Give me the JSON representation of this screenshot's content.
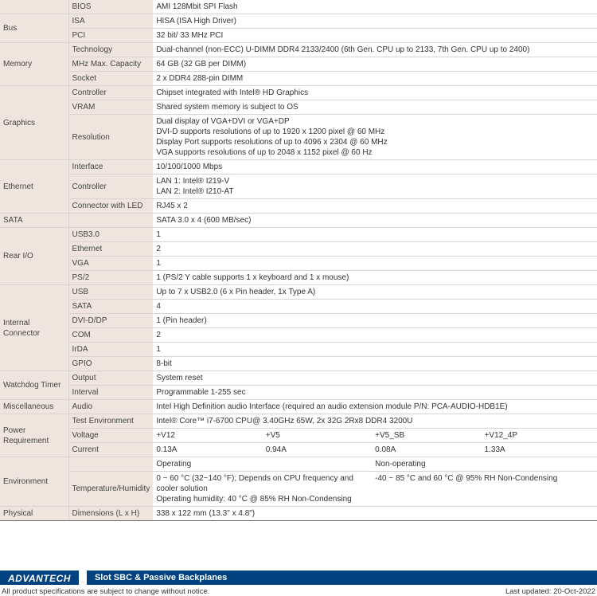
{
  "colors": {
    "category_bg": "#efe5de",
    "border": "#d8d4cf",
    "section_border": "#666666",
    "brand_bg": "#004280",
    "text": "#333333"
  },
  "rows": [
    {
      "cat": "",
      "sub": "BIOS",
      "val": "AMI 128Mbit SPI Flash",
      "catspan": 1
    },
    {
      "cat": "Bus",
      "sub": "ISA",
      "val": "HISA (ISA High Driver)",
      "catspan": 2,
      "sep": true
    },
    {
      "cat": "",
      "sub": "PCI",
      "val": "32 bit/ 33 MHz PCI",
      "catspan": 0
    },
    {
      "cat": "Memory",
      "sub": "Technology",
      "val": "Dual-channel (non-ECC) U-DIMM DDR4 2133/2400 (6th Gen. CPU up to 2133, 7th Gen. CPU up to 2400)",
      "catspan": 3,
      "sep": true
    },
    {
      "cat": "",
      "sub": "MHz Max. Capacity",
      "val": "64 GB (32 GB per DIMM)",
      "catspan": 0
    },
    {
      "cat": "",
      "sub": "Socket",
      "val": "2 x DDR4 288-pin DIMM",
      "catspan": 0
    },
    {
      "cat": "Graphics",
      "sub": "Controller",
      "val": "Chipset integrated with Intel® HD Graphics",
      "catspan": 3,
      "sep": true
    },
    {
      "cat": "",
      "sub": "VRAM",
      "val": "Shared system memory is subject to OS",
      "catspan": 0
    },
    {
      "cat": "",
      "sub": "Resolution",
      "val": "Dual display of VGA+DVI or VGA+DP\nDVI-D supports resolutions of up to 1920 x 1200 pixel @ 60 MHz\nDisplay Port supports resolutions of up to 4096 x 2304 @ 60 MHz\nVGA supports resolutions of up to 2048 x 1152 pixel @ 60 Hz",
      "catspan": 0
    },
    {
      "cat": "Ethernet",
      "sub": "Interface",
      "val": "10/100/1000 Mbps",
      "catspan": 3,
      "sep": true
    },
    {
      "cat": "",
      "sub": "Controller",
      "val": "LAN 1: Intel® I219-V\nLAN 2: Intel® I210-AT",
      "catspan": 0
    },
    {
      "cat": "",
      "sub": "Connector with LED",
      "val": "RJ45 x 2",
      "catspan": 0
    },
    {
      "cat": "SATA",
      "sub": "",
      "val": "SATA 3.0 x 4 (600 MB/sec)",
      "catspan": 1,
      "sep": true,
      "full": true
    },
    {
      "cat": "Rear I/O",
      "sub": "USB3.0",
      "val": "1",
      "catspan": 4,
      "sep": true
    },
    {
      "cat": "",
      "sub": "Ethernet",
      "val": "2",
      "catspan": 0
    },
    {
      "cat": "",
      "sub": "VGA",
      "val": "1",
      "catspan": 0
    },
    {
      "cat": "",
      "sub": "PS/2",
      "val": "1 (PS/2 Y cable supports 1 x keyboard and 1 x mouse)",
      "catspan": 0
    },
    {
      "cat": "Internal Connector",
      "sub": "USB",
      "val": "Up to 7 x USB2.0 (6 x Pin header, 1x Type A)",
      "catspan": 6,
      "sep": true
    },
    {
      "cat": "",
      "sub": "SATA",
      "val": "4",
      "catspan": 0
    },
    {
      "cat": "",
      "sub": "DVI-D/DP",
      "val": "1 (Pin header)",
      "catspan": 0
    },
    {
      "cat": "",
      "sub": "COM",
      "val": "2",
      "catspan": 0
    },
    {
      "cat": "",
      "sub": "IrDA",
      "val": "1",
      "catspan": 0
    },
    {
      "cat": "",
      "sub": "GPIO",
      "val": "8-bit",
      "catspan": 0
    },
    {
      "cat": "Watchdog Timer",
      "sub": "Output",
      "val": "System reset",
      "catspan": 2,
      "sep": true
    },
    {
      "cat": "",
      "sub": "Interval",
      "val": "Programmable 1-255 sec",
      "catspan": 0
    },
    {
      "cat": "Miscellaneous",
      "sub": "Audio",
      "val": "Intel High Definition audio Interface (required an audio extension module P/N: PCA-AUDIO-HDB1E)",
      "catspan": 1,
      "sep": true
    },
    {
      "cat": "Power Requirement",
      "sub": "Test Environment",
      "val": "Intel® Core™ i7-6700 CPU@ 3.40GHz 65W, 2x 32G 2Rx8 DDR4 3200U",
      "catspan": 3,
      "sep": true
    },
    {
      "cat": "",
      "sub": "Voltage",
      "cols": [
        "+V12",
        "+V5",
        "+V5_SB",
        "+V12_4P"
      ],
      "catspan": 0
    },
    {
      "cat": "",
      "sub": "Current",
      "cols": [
        "0.13A",
        "0.94A",
        "0.08A",
        "1.33A"
      ],
      "catspan": 0
    },
    {
      "cat": "Environment",
      "sub": "",
      "cols2": [
        "Operating",
        "Non-operating"
      ],
      "catspan": 2,
      "sep": true
    },
    {
      "cat": "",
      "sub": "Temperature/Humidity",
      "cols2": [
        "0 ~ 60 °C (32~140 °F); Depends on CPU frequency and cooler solution\nOperating humidity: 40 °C @ 85% RH Non-Condensing",
        "-40 ~ 85 °C and 60 °C @ 95% RH Non-Condensing"
      ],
      "catspan": 0
    },
    {
      "cat": "Physical",
      "sub": "Dimensions (L x H)",
      "val": "338 x 122 mm (13.3\" x 4.8\")",
      "catspan": 1,
      "sep": true,
      "lastsep": true
    }
  ],
  "footer": {
    "logo": "ADVANTECH",
    "title": "Slot SBC & Passive Backplanes",
    "disclaimer": "All product specifications are subject to change without notice.",
    "updated": "Last updated: 20-Oct-2022"
  }
}
